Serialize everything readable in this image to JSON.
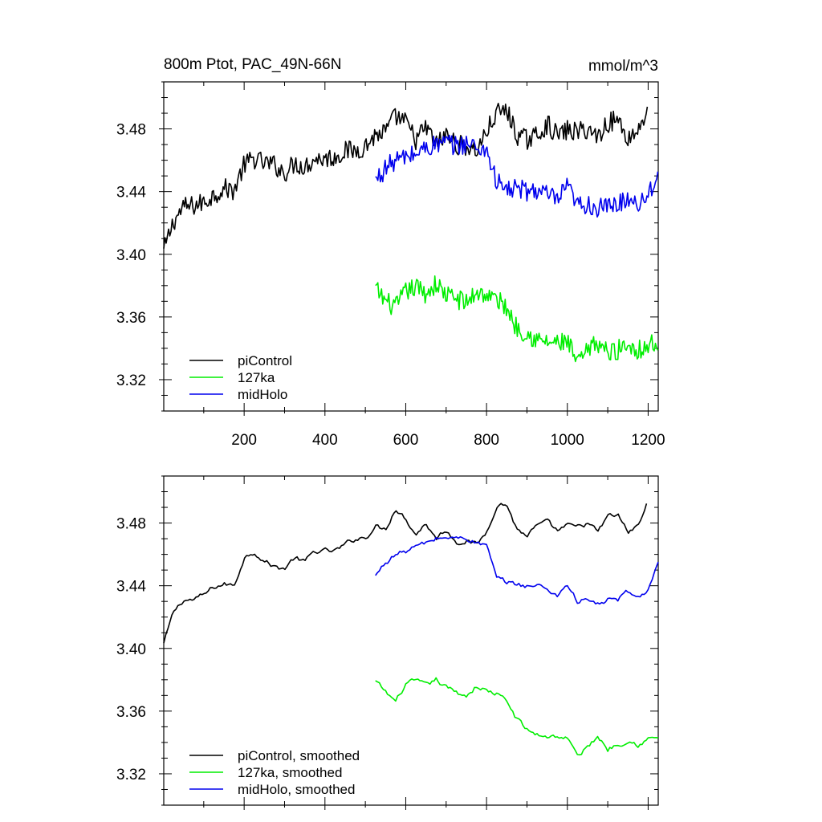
{
  "chart_data": [
    {
      "type": "line",
      "title": "800m Ptot, PAC_49N-66N",
      "units": "mmol/m^3",
      "xlabel": "",
      "ylabel": "",
      "xlim": [
        1,
        1225
      ],
      "ylim": [
        3.3,
        3.51
      ],
      "xticks": [
        200,
        400,
        600,
        800,
        1000,
        1200
      ],
      "xtick_labels": [
        "200",
        "400",
        "600",
        "800",
        "1000",
        "1200"
      ],
      "yticks": [
        3.32,
        3.36,
        3.4,
        3.44,
        3.48
      ],
      "ytick_labels": [
        "3.32",
        "3.36",
        "3.40",
        "3.44",
        "3.48"
      ],
      "grid": false,
      "legend": "bottom-left",
      "series": [
        {
          "name": "piControl",
          "color": "#000000",
          "smooth": false,
          "x": [
            1,
            25,
            50,
            75,
            100,
            125,
            150,
            175,
            200,
            225,
            250,
            275,
            300,
            325,
            350,
            375,
            400,
            425,
            450,
            475,
            500,
            525,
            550,
            575,
            600,
            625,
            650,
            675,
            700,
            725,
            750,
            775,
            800,
            825,
            850,
            875,
            900,
            925,
            950,
            975,
            1000,
            1025,
            1050,
            1075,
            1100,
            1125,
            1150,
            1175,
            1200
          ],
          "y": [
            3.402,
            3.421,
            3.43,
            3.431,
            3.433,
            3.438,
            3.442,
            3.441,
            3.457,
            3.461,
            3.458,
            3.457,
            3.452,
            3.458,
            3.456,
            3.461,
            3.461,
            3.462,
            3.466,
            3.466,
            3.469,
            3.476,
            3.478,
            3.488,
            3.484,
            3.473,
            3.481,
            3.47,
            3.476,
            3.47,
            3.469,
            3.466,
            3.478,
            3.49,
            3.492,
            3.476,
            3.473,
            3.476,
            3.483,
            3.476,
            3.479,
            3.478,
            3.48,
            3.475,
            3.484,
            3.486,
            3.474,
            3.479,
            3.494
          ]
        },
        {
          "name": "127ka",
          "color": "#00ee00",
          "smooth": false,
          "x": [
            525,
            550,
            575,
            600,
            625,
            650,
            675,
            700,
            725,
            750,
            775,
            800,
            825,
            850,
            875,
            900,
            925,
            950,
            975,
            1000,
            1025,
            1050,
            1075,
            1100,
            1125,
            1150,
            1175,
            1200,
            1225
          ],
          "y": [
            3.378,
            3.37,
            3.366,
            3.376,
            3.379,
            3.375,
            3.381,
            3.374,
            3.372,
            3.369,
            3.376,
            3.374,
            3.371,
            3.366,
            3.353,
            3.35,
            3.345,
            3.344,
            3.343,
            3.344,
            3.33,
            3.338,
            3.344,
            3.337,
            3.339,
            3.343,
            3.339,
            3.342,
            3.343
          ]
        },
        {
          "name": "midHolo",
          "color": "#0000ee",
          "smooth": false,
          "x": [
            525,
            550,
            575,
            600,
            625,
            650,
            675,
            700,
            725,
            750,
            775,
            800,
            825,
            850,
            875,
            900,
            925,
            950,
            975,
            1000,
            1025,
            1050,
            1075,
            1100,
            1125,
            1150,
            1175,
            1200,
            1225
          ],
          "y": [
            3.447,
            3.455,
            3.46,
            3.462,
            3.464,
            3.468,
            3.47,
            3.471,
            3.469,
            3.471,
            3.468,
            3.467,
            3.446,
            3.441,
            3.442,
            3.44,
            3.441,
            3.438,
            3.434,
            3.443,
            3.431,
            3.432,
            3.429,
            3.43,
            3.432,
            3.436,
            3.433,
            3.438,
            3.453
          ]
        }
      ]
    },
    {
      "type": "line",
      "title": "",
      "xlabel": "",
      "ylabel": "",
      "xlim": [
        1,
        1225
      ],
      "ylim": [
        3.3,
        3.51
      ],
      "xticks": [
        200,
        400,
        600,
        800,
        1000,
        1200
      ],
      "yticks": [
        3.32,
        3.36,
        3.4,
        3.44,
        3.48
      ],
      "ytick_labels": [
        "3.32",
        "3.36",
        "3.40",
        "3.44",
        "3.48"
      ],
      "grid": false,
      "legend": "bottom-left",
      "series": [
        {
          "name": "piControl, smoothed",
          "color": "#000000",
          "smooth": true,
          "x": [
            1,
            25,
            50,
            75,
            100,
            125,
            150,
            175,
            200,
            225,
            250,
            275,
            300,
            325,
            350,
            375,
            400,
            425,
            450,
            475,
            500,
            525,
            550,
            575,
            600,
            625,
            650,
            675,
            700,
            725,
            750,
            775,
            800,
            825,
            850,
            875,
            900,
            925,
            950,
            975,
            1000,
            1025,
            1050,
            1075,
            1100,
            1125,
            1150,
            1175,
            1200
          ],
          "y": [
            3.403,
            3.423,
            3.431,
            3.431,
            3.434,
            3.439,
            3.441,
            3.44,
            3.458,
            3.462,
            3.456,
            3.452,
            3.451,
            3.458,
            3.455,
            3.462,
            3.462,
            3.462,
            3.466,
            3.47,
            3.471,
            3.478,
            3.476,
            3.49,
            3.483,
            3.473,
            3.48,
            3.47,
            3.476,
            3.468,
            3.469,
            3.466,
            3.474,
            3.492,
            3.492,
            3.476,
            3.472,
            3.478,
            3.48,
            3.475,
            3.478,
            3.477,
            3.48,
            3.474,
            3.484,
            3.485,
            3.474,
            3.478,
            3.494
          ]
        },
        {
          "name": "127ka, smoothed",
          "color": "#00ee00",
          "smooth": true,
          "x": [
            525,
            550,
            575,
            600,
            625,
            650,
            675,
            700,
            725,
            750,
            775,
            800,
            825,
            850,
            875,
            900,
            925,
            950,
            975,
            1000,
            1025,
            1050,
            1075,
            1100,
            1125,
            1150,
            1175,
            1200,
            1225
          ],
          "y": [
            3.379,
            3.372,
            3.366,
            3.377,
            3.379,
            3.376,
            3.38,
            3.375,
            3.372,
            3.37,
            3.376,
            3.373,
            3.371,
            3.366,
            3.355,
            3.348,
            3.345,
            3.344,
            3.344,
            3.343,
            3.331,
            3.337,
            3.344,
            3.336,
            3.339,
            3.342,
            3.339,
            3.342,
            3.343
          ]
        },
        {
          "name": "midHolo, smoothed",
          "color": "#0000ee",
          "smooth": true,
          "x": [
            525,
            550,
            575,
            600,
            625,
            650,
            675,
            700,
            725,
            750,
            775,
            800,
            825,
            850,
            875,
            900,
            925,
            950,
            975,
            1000,
            1025,
            1050,
            1075,
            1100,
            1125,
            1150,
            1175,
            1200,
            1225
          ],
          "y": [
            3.446,
            3.455,
            3.46,
            3.462,
            3.465,
            3.467,
            3.47,
            3.471,
            3.47,
            3.471,
            3.467,
            3.466,
            3.444,
            3.442,
            3.441,
            3.44,
            3.44,
            3.438,
            3.434,
            3.441,
            3.43,
            3.431,
            3.428,
            3.431,
            3.431,
            3.436,
            3.432,
            3.438,
            3.454
          ]
        }
      ]
    }
  ]
}
